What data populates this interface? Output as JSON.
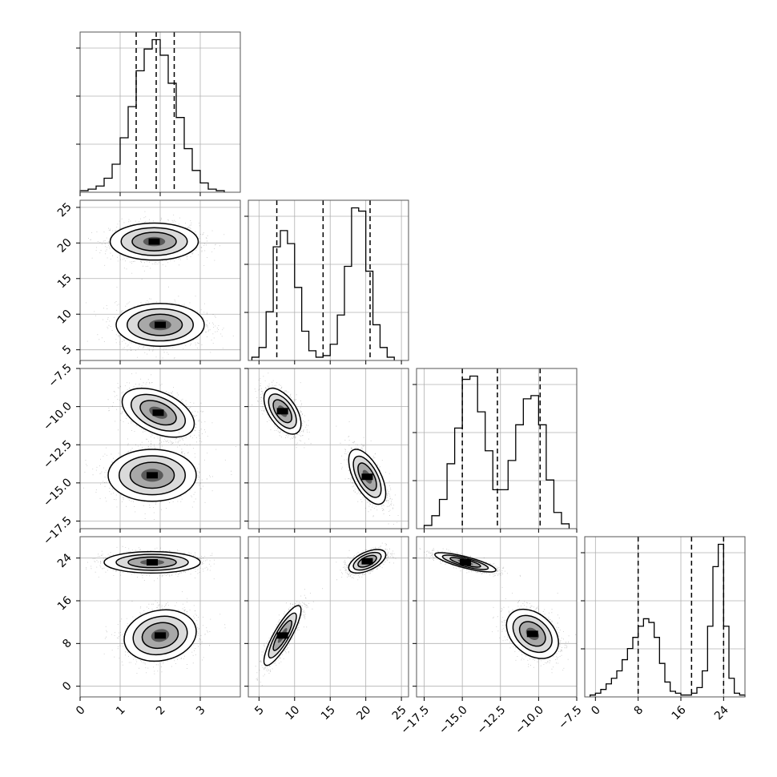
{
  "chart_data": {
    "type": "corner",
    "grid": true,
    "colors": {
      "hist": "#000000",
      "points": "#000000",
      "frame": "#555555"
    },
    "params": [
      {
        "ticks": [
          0,
          1,
          2,
          3
        ],
        "tick_labels": [
          "0",
          "1",
          "2",
          "3"
        ],
        "range": [
          0,
          4.0
        ],
        "quantiles": [
          1.4,
          1.9,
          2.35
        ]
      },
      {
        "ticks": [
          5,
          10,
          15,
          20,
          25
        ],
        "tick_labels": [
          "5",
          "10",
          "15",
          "20",
          "25"
        ],
        "range": [
          3.5,
          26.0
        ],
        "quantiles": [
          7.5,
          14.0,
          20.6
        ]
      },
      {
        "ticks": [
          -17.5,
          -15.0,
          -12.5,
          -10.0,
          -7.5
        ],
        "tick_labels": [
          "−17.5",
          "−15.0",
          "−12.5",
          "−10.0",
          "−7.5"
        ],
        "range": [
          -18.0,
          -7.5
        ],
        "quantiles": [
          -15.0,
          -12.7,
          -9.9
        ]
      },
      {
        "ticks": [
          0,
          8,
          16,
          24
        ],
        "tick_labels": [
          "0",
          "8",
          "16",
          "24"
        ],
        "range": [
          -2.0,
          28.0
        ],
        "quantiles": [
          8.0,
          18.0,
          24.0
        ]
      }
    ],
    "histograms": [
      {
        "param": 0,
        "bin_edges": [
          0.0,
          0.2,
          0.4,
          0.6,
          0.8,
          1.0,
          1.2,
          1.4,
          1.6,
          1.8,
          2.0,
          2.2,
          2.4,
          2.6,
          2.8,
          3.0,
          3.2,
          3.4,
          3.6
        ],
        "counts": [
          1,
          2,
          4,
          9,
          18,
          35,
          55,
          78,
          92,
          98,
          88,
          70,
          48,
          28,
          14,
          6,
          2,
          1
        ]
      },
      {
        "param": 1,
        "bin_edges": [
          4,
          5,
          6,
          7,
          8,
          9,
          10,
          11,
          12,
          13,
          14,
          15,
          16,
          17,
          18,
          19,
          20,
          21,
          22,
          23,
          24
        ],
        "counts": [
          2,
          8,
          30,
          70,
          80,
          72,
          45,
          18,
          6,
          2,
          3,
          10,
          28,
          58,
          94,
          92,
          55,
          22,
          8,
          2
        ]
      },
      {
        "param": 2,
        "bin_edges": [
          -17.5,
          -17,
          -16.5,
          -16,
          -15.5,
          -15,
          -14.5,
          -14,
          -13.5,
          -13,
          -12.5,
          -12,
          -11.5,
          -11,
          -10.5,
          -10,
          -9.5,
          -9,
          -8.5,
          -8
        ],
        "counts": [
          2,
          8,
          18,
          40,
          62,
          92,
          94,
          72,
          48,
          24,
          24,
          42,
          64,
          80,
          82,
          64,
          30,
          10,
          3
        ]
      },
      {
        "param": 3,
        "bin_edges": [
          -1,
          0,
          1,
          2,
          3,
          4,
          5,
          6,
          7,
          8,
          9,
          10,
          11,
          12,
          13,
          14,
          15,
          16,
          17,
          18,
          19,
          20,
          21,
          22,
          23,
          24,
          25,
          26,
          27,
          28
        ],
        "counts": [
          1,
          2,
          4,
          7,
          10,
          14,
          20,
          26,
          32,
          38,
          42,
          40,
          32,
          18,
          8,
          3,
          2,
          1,
          1,
          2,
          5,
          14,
          38,
          70,
          82,
          38,
          10,
          2,
          1
        ]
      }
    ],
    "pairs": [
      {
        "x_param": 0,
        "y_param": 1,
        "clusters": [
          {
            "mean": [
              1.85,
              20.2
            ],
            "sd": [
              0.55,
              1.3
            ],
            "corr": 0.0
          },
          {
            "mean": [
              2.0,
              8.5
            ],
            "sd": [
              0.55,
              1.5
            ],
            "corr": 0.0
          }
        ]
      },
      {
        "x_param": 0,
        "y_param": 2,
        "clusters": [
          {
            "mean": [
              1.95,
              -10.4
            ],
            "sd": [
              0.45,
              0.8
            ],
            "corr": -0.45
          },
          {
            "mean": [
              1.8,
              -14.5
            ],
            "sd": [
              0.55,
              0.85
            ],
            "corr": 0.0
          }
        ]
      },
      {
        "x_param": 1,
        "y_param": 2,
        "clusters": [
          {
            "mean": [
              8.3,
              -10.3
            ],
            "sd": [
              1.3,
              0.75
            ],
            "corr": -0.55
          },
          {
            "mean": [
              20.2,
              -14.6
            ],
            "sd": [
              1.3,
              0.9
            ],
            "corr": -0.6
          }
        ]
      },
      {
        "x_param": 0,
        "y_param": 3,
        "clusters": [
          {
            "mean": [
              1.8,
              23.2
            ],
            "sd": [
              0.6,
              1.0
            ],
            "corr": 0.0
          },
          {
            "mean": [
              2.0,
              9.5
            ],
            "sd": [
              0.45,
              2.4
            ],
            "corr": 0.15
          }
        ]
      },
      {
        "x_param": 1,
        "y_param": 3,
        "clusters": [
          {
            "mean": [
              20.2,
              23.4
            ],
            "sd": [
              1.3,
              1.1
            ],
            "corr": 0.55
          },
          {
            "mean": [
              8.3,
              9.5
            ],
            "sd": [
              1.3,
              2.8
            ],
            "corr": 0.85
          }
        ]
      },
      {
        "x_param": 2,
        "y_param": 3,
        "clusters": [
          {
            "mean": [
              -14.8,
              23.2
            ],
            "sd": [
              1.0,
              0.9
            ],
            "corr": -0.8
          },
          {
            "mean": [
              -10.4,
              9.8
            ],
            "sd": [
              0.85,
              2.3
            ],
            "corr": -0.35
          }
        ]
      }
    ]
  }
}
